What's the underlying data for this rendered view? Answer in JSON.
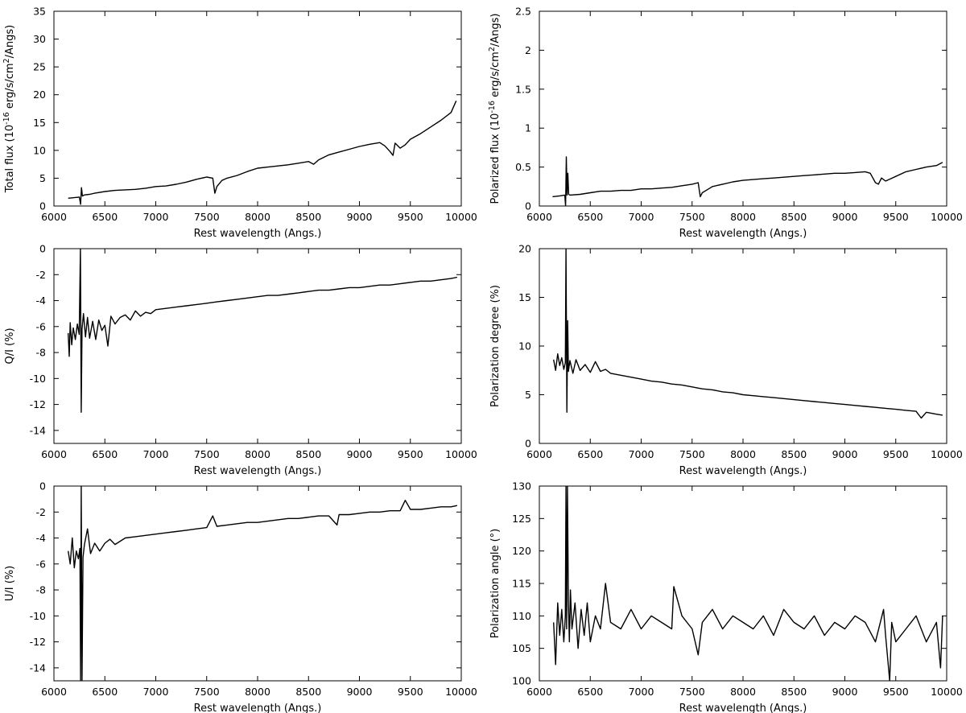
{
  "chart_data": [
    {
      "type": "line",
      "xlabel": "Rest wavelength (Angs.)",
      "ylabel": "Total flux (10-16 erg/s/cm2/Angs)",
      "ylabel_parts": {
        "base": "Total flux (10",
        "exp1": "-16",
        "mid": " erg/s/cm",
        "exp2": "2",
        "end": "/Angs)"
      },
      "xlim": [
        6000,
        10000
      ],
      "ylim": [
        0,
        35
      ],
      "xticks": [
        6000,
        6500,
        7000,
        7500,
        8000,
        8500,
        9000,
        9500,
        10000
      ],
      "xtick_labels": [
        "6000",
        "6500",
        "7000",
        "7500",
        "8000",
        "8500",
        "9000",
        "9500",
        "10000"
      ],
      "yticks": [
        0,
        5,
        10,
        15,
        20,
        25,
        30,
        35
      ],
      "ytick_labels": [
        "0",
        "5",
        "10",
        "15",
        "20",
        "25",
        "30",
        "35"
      ],
      "series": [
        {
          "x": [
            6140,
            6200,
            6250,
            6262,
            6270,
            6280,
            6300,
            6350,
            6400,
            6500,
            6600,
            6700,
            6800,
            6900,
            7000,
            7100,
            7200,
            7300,
            7400,
            7500,
            7560,
            7580,
            7600,
            7650,
            7700,
            7800,
            7900,
            8000,
            8100,
            8200,
            8300,
            8400,
            8500,
            8550,
            8600,
            8700,
            8800,
            8900,
            9000,
            9100,
            9200,
            9250,
            9300,
            9330,
            9350,
            9400,
            9450,
            9500,
            9600,
            9700,
            9800,
            9900,
            9950
          ],
          "y": [
            1.4,
            1.5,
            1.6,
            0.3,
            3.3,
            1.8,
            2.0,
            2.1,
            2.3,
            2.6,
            2.8,
            2.9,
            3.0,
            3.2,
            3.5,
            3.6,
            3.9,
            4.3,
            4.8,
            5.2,
            5.0,
            2.3,
            3.5,
            4.6,
            5.0,
            5.5,
            6.2,
            6.8,
            7.0,
            7.2,
            7.4,
            7.7,
            8.0,
            7.5,
            8.3,
            9.2,
            9.7,
            10.2,
            10.7,
            11.1,
            11.4,
            10.8,
            9.8,
            9.1,
            11.3,
            10.4,
            11.0,
            12.0,
            13.0,
            14.2,
            15.4,
            16.8,
            18.9
          ]
        }
      ]
    },
    {
      "type": "line",
      "xlabel": "Rest wavelength (Angs.)",
      "ylabel": "Polarized flux (10-16 erg/s/cm2/Angs)",
      "ylabel_parts": {
        "base": "Polarized flux (10",
        "exp1": "-16",
        "mid": " erg/s/cm",
        "exp2": "2",
        "end": "/Angs)"
      },
      "xlim": [
        6000,
        10000
      ],
      "ylim": [
        0,
        2.5
      ],
      "xticks": [
        6000,
        6500,
        7000,
        7500,
        8000,
        8500,
        9000,
        9500,
        10000
      ],
      "xtick_labels": [
        "6000",
        "6500",
        "7000",
        "7500",
        "8000",
        "8500",
        "9000",
        "9500",
        "10000"
      ],
      "yticks": [
        0,
        0.5,
        1,
        1.5,
        2,
        2.5
      ],
      "ytick_labels": [
        "0",
        "0.5",
        "1",
        "1.5",
        "2",
        "2.5"
      ],
      "series": [
        {
          "x": [
            6130,
            6200,
            6250,
            6258,
            6265,
            6272,
            6280,
            6288,
            6300,
            6400,
            6500,
            6600,
            6700,
            6800,
            6900,
            7000,
            7100,
            7200,
            7300,
            7400,
            7500,
            7560,
            7580,
            7600,
            7650,
            7700,
            7800,
            7900,
            8000,
            8100,
            8200,
            8300,
            8400,
            8500,
            8600,
            8700,
            8800,
            8900,
            9000,
            9100,
            9200,
            9250,
            9300,
            9330,
            9360,
            9400,
            9450,
            9500,
            9600,
            9700,
            9800,
            9900,
            9960
          ],
          "y": [
            0.12,
            0.13,
            0.14,
            0.0,
            0.63,
            0.14,
            0.42,
            0.15,
            0.14,
            0.15,
            0.17,
            0.19,
            0.19,
            0.2,
            0.2,
            0.22,
            0.22,
            0.23,
            0.24,
            0.26,
            0.28,
            0.3,
            0.12,
            0.17,
            0.21,
            0.25,
            0.28,
            0.31,
            0.33,
            0.34,
            0.35,
            0.36,
            0.37,
            0.38,
            0.39,
            0.4,
            0.41,
            0.42,
            0.42,
            0.43,
            0.44,
            0.42,
            0.3,
            0.28,
            0.36,
            0.32,
            0.35,
            0.38,
            0.44,
            0.47,
            0.5,
            0.52,
            0.56
          ]
        }
      ]
    },
    {
      "type": "line",
      "xlabel": "Rest wavelength (Angs.)",
      "ylabel": "Q/I (%)",
      "xlim": [
        6000,
        10000
      ],
      "ylim": [
        -15,
        0
      ],
      "xticks": [
        6000,
        6500,
        7000,
        7500,
        8000,
        8500,
        9000,
        9500,
        10000
      ],
      "xtick_labels": [
        "6000",
        "6500",
        "7000",
        "7500",
        "8000",
        "8500",
        "9000",
        "9500",
        "10000"
      ],
      "yticks": [
        -14,
        -12,
        -10,
        -8,
        -6,
        -4,
        -2,
        0
      ],
      "ytick_labels": [
        "-14",
        "-12",
        "-10",
        "-8",
        "-6",
        "-4",
        "-2",
        "0"
      ],
      "series": [
        {
          "x": [
            6140,
            6150,
            6160,
            6175,
            6190,
            6210,
            6230,
            6248,
            6260,
            6268,
            6276,
            6290,
            6310,
            6330,
            6350,
            6380,
            6410,
            6440,
            6470,
            6500,
            6530,
            6560,
            6600,
            6650,
            6700,
            6750,
            6800,
            6850,
            6900,
            6950,
            7000,
            7100,
            7200,
            7300,
            7400,
            7500,
            7600,
            7700,
            7800,
            7900,
            8000,
            8100,
            8200,
            8300,
            8400,
            8500,
            8600,
            8700,
            8800,
            8900,
            9000,
            9100,
            9200,
            9300,
            9400,
            9500,
            9600,
            9700,
            9800,
            9900,
            9960
          ],
          "y": [
            -6.5,
            -8.3,
            -5.7,
            -7.4,
            -6.1,
            -7.0,
            -5.8,
            -6.6,
            0,
            -12.6,
            -6.2,
            -5.0,
            -6.8,
            -5.3,
            -6.9,
            -5.6,
            -7.0,
            -5.5,
            -6.3,
            -5.9,
            -7.5,
            -5.2,
            -5.8,
            -5.3,
            -5.1,
            -5.5,
            -4.8,
            -5.2,
            -4.9,
            -5.0,
            -4.7,
            -4.6,
            -4.5,
            -4.4,
            -4.3,
            -4.2,
            -4.1,
            -4.0,
            -3.9,
            -3.8,
            -3.7,
            -3.6,
            -3.6,
            -3.5,
            -3.4,
            -3.3,
            -3.2,
            -3.2,
            -3.1,
            -3.0,
            -3.0,
            -2.9,
            -2.8,
            -2.8,
            -2.7,
            -2.6,
            -2.5,
            -2.5,
            -2.4,
            -2.3,
            -2.2
          ]
        }
      ]
    },
    {
      "type": "line",
      "xlabel": "Rest wavelength (Angs.)",
      "ylabel": "Polarization degree (%)",
      "xlim": [
        6000,
        10000
      ],
      "ylim": [
        0,
        20
      ],
      "xticks": [
        6000,
        6500,
        7000,
        7500,
        8000,
        8500,
        9000,
        9500,
        10000
      ],
      "xtick_labels": [
        "6000",
        "6500",
        "7000",
        "7500",
        "8000",
        "8500",
        "9000",
        "9500",
        "10000"
      ],
      "yticks": [
        0,
        5,
        10,
        15,
        20
      ],
      "ytick_labels": [
        "0",
        "5",
        "10",
        "15",
        "20"
      ],
      "series": [
        {
          "x": [
            6140,
            6160,
            6180,
            6200,
            6220,
            6240,
            6255,
            6262,
            6270,
            6278,
            6285,
            6300,
            6330,
            6360,
            6400,
            6450,
            6500,
            6550,
            6600,
            6650,
            6700,
            6800,
            6900,
            7000,
            7100,
            7200,
            7300,
            7400,
            7500,
            7600,
            7700,
            7800,
            7900,
            8000,
            8100,
            8200,
            8300,
            8400,
            8500,
            8600,
            8700,
            8800,
            8900,
            9000,
            9100,
            9200,
            9300,
            9400,
            9500,
            9600,
            9700,
            9750,
            9800,
            9900,
            9960
          ],
          "y": [
            8.6,
            7.5,
            9.2,
            8.0,
            8.8,
            7.6,
            8.3,
            20,
            3.2,
            12.6,
            7.4,
            8.5,
            7.2,
            8.6,
            7.5,
            8.1,
            7.3,
            8.4,
            7.4,
            7.6,
            7.2,
            7.0,
            6.8,
            6.6,
            6.4,
            6.3,
            6.1,
            6.0,
            5.8,
            5.6,
            5.5,
            5.3,
            5.2,
            5.0,
            4.9,
            4.8,
            4.7,
            4.6,
            4.5,
            4.4,
            4.3,
            4.2,
            4.1,
            4.0,
            3.9,
            3.8,
            3.7,
            3.6,
            3.5,
            3.4,
            3.3,
            2.6,
            3.2,
            3.0,
            2.9
          ]
        }
      ]
    },
    {
      "type": "line",
      "xlabel": "Rest wavelength (Angs.)",
      "ylabel": "U/I (%)",
      "xlim": [
        6000,
        10000
      ],
      "ylim": [
        -15,
        0
      ],
      "xticks": [
        6000,
        6500,
        7000,
        7500,
        8000,
        8500,
        9000,
        9500,
        10000
      ],
      "xtick_labels": [
        "6000",
        "6500",
        "7000",
        "7500",
        "8000",
        "8500",
        "9000",
        "9500",
        "10000"
      ],
      "yticks": [
        -14,
        -12,
        -10,
        -8,
        -6,
        -4,
        -2,
        0
      ],
      "ytick_labels": [
        "-14",
        "-12",
        "-10",
        "-8",
        "-6",
        "-4",
        "-2",
        "0"
      ],
      "series": [
        {
          "x": [
            6140,
            6160,
            6180,
            6200,
            6220,
            6240,
            6255,
            6262,
            6268,
            6276,
            6285,
            6300,
            6330,
            6360,
            6400,
            6450,
            6500,
            6550,
            6600,
            6700,
            6800,
            6900,
            7000,
            7100,
            7200,
            7300,
            7400,
            7500,
            7560,
            7600,
            7700,
            7800,
            7900,
            8000,
            8100,
            8200,
            8300,
            8400,
            8500,
            8600,
            8700,
            8780,
            8800,
            8900,
            9000,
            9100,
            9200,
            9300,
            9400,
            9450,
            9500,
            9600,
            9700,
            9800,
            9900,
            9960
          ],
          "y": [
            -5.0,
            -6.0,
            -4.0,
            -6.3,
            -5.0,
            -5.6,
            -4.8,
            -15,
            0,
            -15,
            -5.5,
            -4.5,
            -3.3,
            -5.2,
            -4.4,
            -5.0,
            -4.4,
            -4.1,
            -4.5,
            -4.0,
            -3.9,
            -3.8,
            -3.7,
            -3.6,
            -3.5,
            -3.4,
            -3.3,
            -3.2,
            -2.3,
            -3.1,
            -3.0,
            -2.9,
            -2.8,
            -2.8,
            -2.7,
            -2.6,
            -2.5,
            -2.5,
            -2.4,
            -2.3,
            -2.3,
            -3.0,
            -2.2,
            -2.2,
            -2.1,
            -2.0,
            -2.0,
            -1.9,
            -1.9,
            -1.1,
            -1.8,
            -1.8,
            -1.7,
            -1.6,
            -1.6,
            -1.5
          ]
        }
      ]
    },
    {
      "type": "line",
      "xlabel": "Rest wavelength (Angs.)",
      "ylabel": "Polarization angle (°)",
      "xlim": [
        6000,
        10000
      ],
      "ylim": [
        100,
        130
      ],
      "xticks": [
        6000,
        6500,
        7000,
        7500,
        8000,
        8500,
        9000,
        9500,
        10000
      ],
      "xtick_labels": [
        "6000",
        "6500",
        "7000",
        "7500",
        "8000",
        "8500",
        "9000",
        "9500",
        "10000"
      ],
      "yticks": [
        100,
        105,
        110,
        115,
        120,
        125,
        130
      ],
      "ytick_labels": [
        "100",
        "105",
        "110",
        "115",
        "120",
        "125",
        "130"
      ],
      "series": [
        {
          "x": [
            6140,
            6160,
            6180,
            6200,
            6220,
            6240,
            6255,
            6262,
            6268,
            6276,
            6285,
            6295,
            6305,
            6320,
            6350,
            6380,
            6410,
            6440,
            6470,
            6500,
            6550,
            6600,
            6650,
            6700,
            6800,
            6900,
            7000,
            7100,
            7200,
            7300,
            7320,
            7400,
            7500,
            7560,
            7600,
            7700,
            7800,
            7900,
            8000,
            8100,
            8200,
            8300,
            8400,
            8500,
            8600,
            8700,
            8800,
            8900,
            9000,
            9100,
            9200,
            9300,
            9380,
            9400,
            9440,
            9460,
            9500,
            9600,
            9700,
            9800,
            9900,
            9940,
            9960
          ],
          "y": [
            109,
            102.5,
            112,
            107,
            111,
            106,
            110,
            130,
            108,
            130,
            112,
            106,
            114,
            108,
            112,
            105,
            111,
            107,
            112,
            106,
            110,
            108,
            115,
            109,
            108,
            111,
            108,
            110,
            109,
            108,
            114.5,
            110,
            108,
            104,
            109,
            111,
            108,
            110,
            109,
            108,
            110,
            107,
            111,
            109,
            108,
            110,
            107,
            109,
            108,
            110,
            109,
            106,
            111,
            107,
            100,
            109,
            106,
            108,
            110,
            106,
            109,
            102,
            110
          ]
        }
      ]
    }
  ]
}
